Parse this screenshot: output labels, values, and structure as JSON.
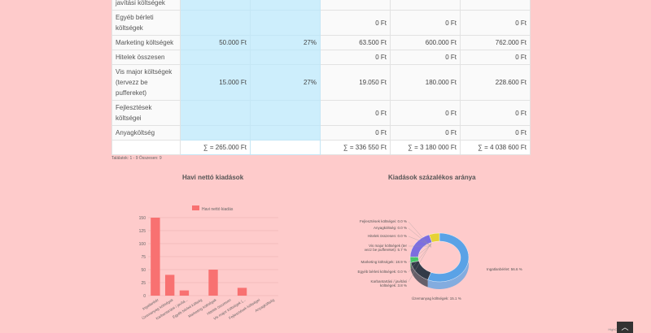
{
  "table": {
    "rows": [
      {
        "label": "javítási költségek",
        "c1": "",
        "c2": "",
        "c3": "",
        "c4": "",
        "c5": ""
      },
      {
        "label": "Egyéb bérleti költségek",
        "c1": "",
        "c2": "",
        "c3": "0 Ft",
        "c4": "0 Ft",
        "c5": "0 Ft"
      },
      {
        "label": "Marketing költségek",
        "c1": "50.000 Ft",
        "c2": "27%",
        "c3": "63.500 Ft",
        "c4": "600.000 Ft",
        "c5": "762.000 Ft"
      },
      {
        "label": "Hitelek összesen",
        "c1": "",
        "c2": "",
        "c3": "0 Ft",
        "c4": "0 Ft",
        "c5": "0 Ft"
      },
      {
        "label": "Vis major költségek (tervezz be puffereket)",
        "c1": "15.000 Ft",
        "c2": "27%",
        "c3": "19.050 Ft",
        "c4": "180.000 Ft",
        "c5": "228.600 Ft"
      },
      {
        "label": "Fejlesztések költségei",
        "c1": "",
        "c2": "",
        "c3": "0 Ft",
        "c4": "0 Ft",
        "c5": "0 Ft"
      },
      {
        "label": "Anyagköltség",
        "c1": "",
        "c2": "",
        "c3": "0 Ft",
        "c4": "0 Ft",
        "c5": "0 Ft"
      }
    ],
    "sum": {
      "c1": "∑ = 265.000 Ft",
      "c3": "∑ = 336 550 Ft",
      "c4": "∑ = 3 180 000 Ft",
      "c5": "∑ = 4 038 600 Ft"
    },
    "info": "Találatok: 1 - 9 Összesen: 9"
  },
  "chart_data": [
    {
      "type": "bar",
      "title": "Havi nettó kiadások",
      "legend": "Havi nettó kiadás",
      "categories": [
        "Ingatlanbér",
        "Üzemanyag költségek",
        "Karbantartási / javítá...",
        "Egyéb bérleti költség",
        "Marketing költségek",
        "Hitelek összesen",
        "Vis major költségek (...",
        "Fejlesztések költségei",
        "Anyagköltség"
      ],
      "values": [
        150,
        40,
        10,
        0,
        50,
        0,
        15,
        0,
        0
      ],
      "yticks": [
        "0",
        "25",
        "50",
        "75",
        "100",
        "125",
        "150"
      ],
      "ylim": [
        0,
        150
      ],
      "color": "#f87171"
    },
    {
      "type": "pie",
      "title": "Kiadások százalékos aránya",
      "slices": [
        {
          "label": "Ingatlanbérlet: 56.6 %",
          "value": 56.6,
          "color": "#5aa2e6"
        },
        {
          "label": "Üzemanyag költségek: 15.1 %",
          "value": 15.1,
          "color": "#333b48"
        },
        {
          "label": "Karbantartási / javítási költségek: 3.8 %",
          "value": 3.8,
          "color": "#44c767"
        },
        {
          "label": "Egyéb bérleti költségek: 0.0 %",
          "value": 0.0,
          "color": "#e98c3a"
        },
        {
          "label": "Marketing költségek: 18.9 %",
          "value": 18.9,
          "color": "#7c6ee0"
        },
        {
          "label": "Hitelek összesen: 0.0 %",
          "value": 0.0,
          "color": "#e55b7a"
        },
        {
          "label": "Vis major költségek (tervezz be puffereket): 5.7 %",
          "value": 5.7,
          "color": "#e6d236"
        },
        {
          "label": "Anyagköltség: 0.0 %",
          "value": 0.0,
          "color": "#3c7e9a"
        },
        {
          "label": "Fejlesztések költségei: 0.0 %",
          "value": 0.0,
          "color": "#9e9e9e"
        }
      ]
    }
  ],
  "footer": {
    "credit": "HighCharts.com",
    "scroll_icon": "chevron-up-icon"
  }
}
